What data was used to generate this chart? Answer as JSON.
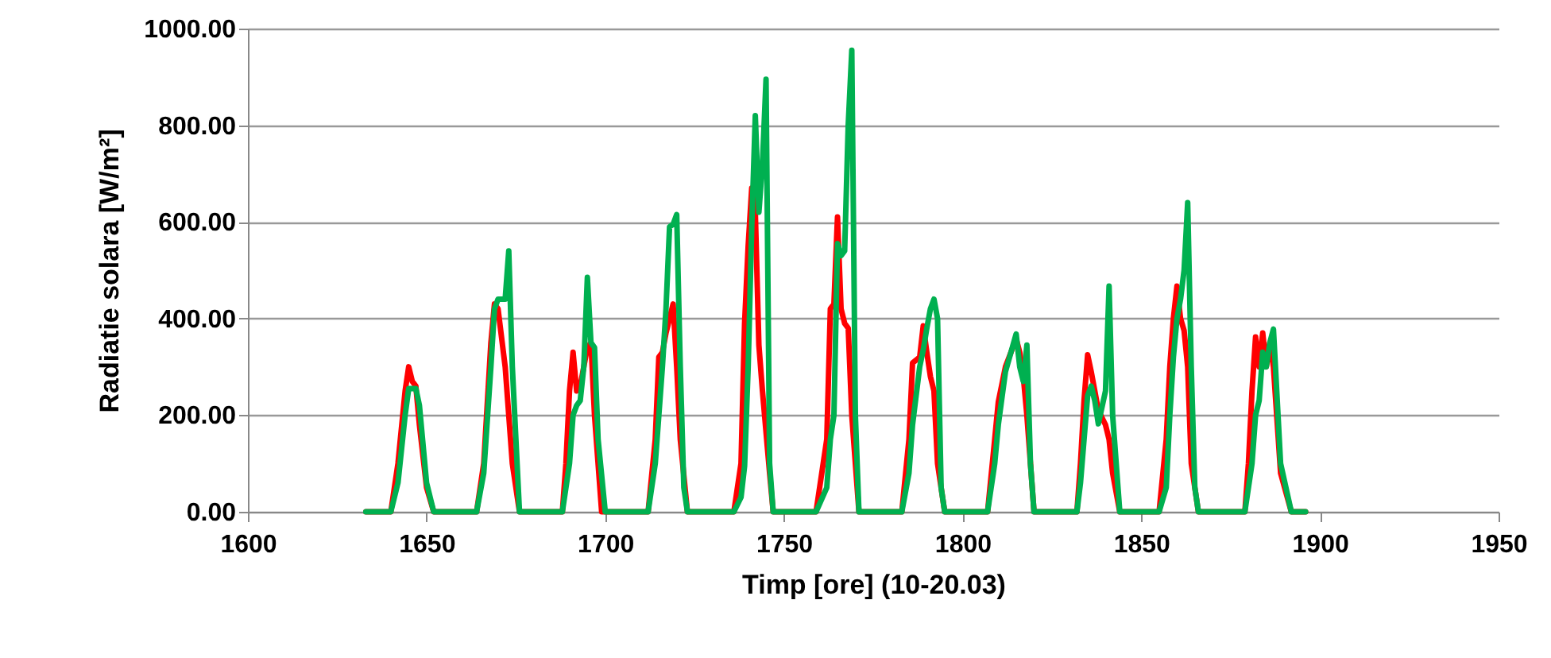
{
  "chart_data": {
    "type": "line",
    "xlabel": "Timp [ore] (10-20.03)",
    "ylabel": "Radiatie solara [W/m²]",
    "xlim": [
      1600,
      1950
    ],
    "xticks": [
      1600,
      1650,
      1700,
      1750,
      1800,
      1850,
      1900,
      1950
    ],
    "ylim": [
      0,
      1000
    ],
    "yticks": [
      {
        "value": 0,
        "label": "0.00"
      },
      {
        "value": 200,
        "label": "200.00"
      },
      {
        "value": 400,
        "label": "400.00"
      },
      {
        "value": 600,
        "label": "600.00"
      },
      {
        "value": 800,
        "label": "800.00"
      },
      {
        "value": 1000,
        "label": "1000.00"
      }
    ],
    "grid": "y",
    "marker": "none",
    "line_style": "solid",
    "series": [
      {
        "color": "#ff0000",
        "x": [
          1633,
          1640,
          1642,
          1644,
          1645,
          1646,
          1647,
          1648,
          1650,
          1652,
          1664,
          1666,
          1668,
          1669,
          1670,
          1672,
          1674,
          1676,
          1688,
          1689,
          1690,
          1691,
          1692,
          1693,
          1695,
          1696,
          1697,
          1699,
          1712,
          1714,
          1715,
          1716,
          1717,
          1719,
          1720,
          1721,
          1723,
          1736,
          1738,
          1739,
          1740,
          1741,
          1742,
          1743,
          1744,
          1746,
          1747,
          1759,
          1762,
          1763,
          1764,
          1765,
          1766,
          1767,
          1768,
          1769,
          1771,
          1783,
          1785,
          1786,
          1788,
          1789,
          1790,
          1791,
          1792,
          1793,
          1795,
          1807,
          1809,
          1810,
          1812,
          1815,
          1816,
          1817,
          1818,
          1820,
          1832,
          1833,
          1834,
          1835,
          1836,
          1837,
          1838,
          1840,
          1841,
          1842,
          1844,
          1855,
          1857,
          1858,
          1859,
          1860,
          1861,
          1862,
          1863,
          1864,
          1866,
          1879,
          1880,
          1881,
          1882,
          1883,
          1884,
          1885,
          1886,
          1887,
          1889,
          1892,
          1896
        ],
        "values": [
          0,
          0,
          100,
          250,
          300,
          270,
          260,
          180,
          50,
          0,
          0,
          100,
          350,
          430,
          420,
          300,
          100,
          0,
          0,
          100,
          250,
          330,
          250,
          260,
          340,
          350,
          200,
          0,
          0,
          150,
          320,
          330,
          370,
          430,
          300,
          150,
          0,
          0,
          100,
          390,
          550,
          670,
          620,
          345,
          250,
          80,
          0,
          0,
          150,
          420,
          430,
          610,
          420,
          390,
          380,
          200,
          0,
          0,
          150,
          308,
          320,
          385,
          330,
          280,
          250,
          100,
          0,
          0,
          150,
          227,
          300,
          358,
          330,
          280,
          200,
          0,
          0,
          100,
          230,
          325,
          290,
          250,
          210,
          180,
          150,
          80,
          0,
          0,
          150,
          300,
          400,
          467,
          400,
          375,
          300,
          100,
          0,
          0,
          100,
          250,
          362,
          300,
          370,
          300,
          350,
          300,
          80,
          0,
          0
        ]
      },
      {
        "color": "#00b050",
        "x": [
          1633,
          1640,
          1642,
          1644,
          1645,
          1647,
          1648,
          1650,
          1652,
          1664,
          1666,
          1668,
          1669,
          1670,
          1672,
          1673,
          1674,
          1676,
          1688,
          1690,
          1691,
          1692,
          1693,
          1694,
          1695,
          1696,
          1697,
          1698,
          1700,
          1712,
          1714,
          1715,
          1716,
          1717,
          1718,
          1719,
          1720,
          1721,
          1722,
          1723,
          1736,
          1738,
          1739,
          1740,
          1741,
          1742,
          1743,
          1744,
          1745,
          1746,
          1747,
          1759,
          1762,
          1763,
          1764,
          1765,
          1766,
          1767,
          1768,
          1769,
          1770,
          1771,
          1783,
          1785,
          1786,
          1788,
          1789,
          1790,
          1791,
          1792,
          1793,
          1794,
          1795,
          1807,
          1809,
          1810,
          1812,
          1815,
          1816,
          1817,
          1818,
          1819,
          1820,
          1832,
          1833,
          1834,
          1835,
          1836,
          1837,
          1838,
          1840,
          1841,
          1842,
          1844,
          1855,
          1857,
          1858,
          1859,
          1860,
          1861,
          1862,
          1863,
          1864,
          1865,
          1866,
          1879,
          1881,
          1882,
          1883,
          1884,
          1885,
          1886,
          1887,
          1889,
          1892,
          1896
        ],
        "values": [
          0,
          0,
          60,
          200,
          255,
          255,
          220,
          60,
          0,
          0,
          80,
          300,
          420,
          440,
          440,
          540,
          300,
          0,
          0,
          100,
          200,
          220,
          230,
          300,
          485,
          350,
          340,
          150,
          0,
          0,
          100,
          200,
          300,
          420,
          590,
          595,
          615,
          300,
          50,
          0,
          0,
          30,
          95,
          300,
          590,
          820,
          620,
          720,
          895,
          100,
          0,
          0,
          50,
          150,
          200,
          555,
          530,
          540,
          800,
          955,
          200,
          0,
          0,
          80,
          180,
          300,
          335,
          380,
          420,
          440,
          400,
          50,
          0,
          0,
          100,
          180,
          290,
          368,
          300,
          270,
          345,
          100,
          0,
          0,
          60,
          150,
          240,
          260,
          230,
          182,
          250,
          467,
          200,
          0,
          0,
          50,
          200,
          320,
          400,
          440,
          500,
          640,
          300,
          50,
          0,
          0,
          100,
          200,
          230,
          330,
          300,
          350,
          378,
          100,
          0,
          0
        ]
      }
    ]
  }
}
